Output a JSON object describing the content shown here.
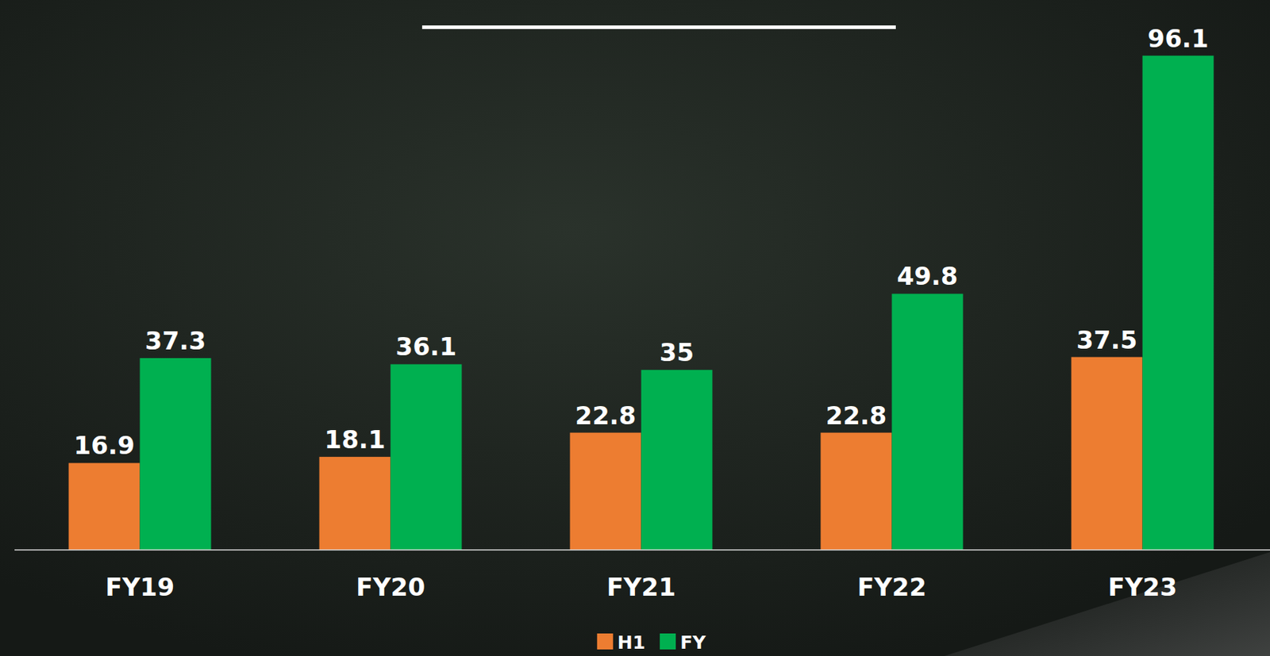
{
  "chart_data": {
    "type": "bar",
    "categories": [
      "FY19",
      "FY20",
      "FY21",
      "FY22",
      "FY23"
    ],
    "series": [
      {
        "name": "H1",
        "color": "#ed7d31",
        "values": [
          16.9,
          18.1,
          22.8,
          22.8,
          37.5
        ]
      },
      {
        "name": "FY",
        "color": "#00b050",
        "values": [
          37.3,
          36.1,
          35.0,
          49.8,
          96.1
        ]
      }
    ],
    "ylim": [
      0,
      100
    ],
    "data_labels": true,
    "tick_labels": "x",
    "legend": "bottom",
    "grid": false
  }
}
